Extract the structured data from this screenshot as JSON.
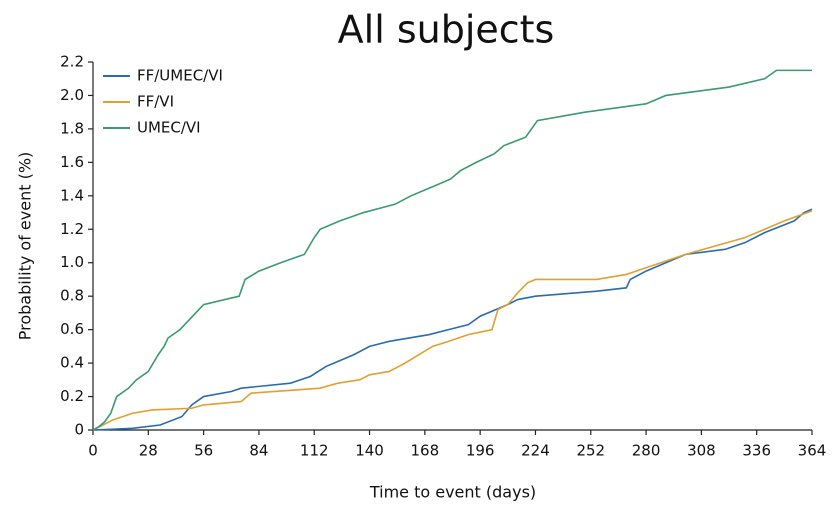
{
  "chart_data": {
    "type": "line",
    "title": "All subjects",
    "x_label": "Time to event (days)",
    "y_label": "Probability of event (%)",
    "xlim": [
      0,
      364
    ],
    "xticks": [
      0,
      28,
      56,
      84,
      112,
      140,
      168,
      196,
      224,
      252,
      280,
      308,
      336,
      364
    ],
    "ylim": [
      0,
      2.2
    ],
    "yticks": [
      0,
      0.2,
      0.4,
      0.6,
      0.8,
      {
        "value": 1,
        "label": "1.0"
      },
      1.2,
      1.4,
      1.6,
      1.8,
      {
        "value": 2,
        "label": "2.0"
      },
      2.2
    ],
    "legend": "top-left",
    "series": [
      {
        "name": "FF/UMEC/VI",
        "color": "#2a6cb0",
        "x": [
          0,
          20,
          34,
          45,
          50,
          56,
          70,
          75,
          100,
          110,
          118,
          126,
          132,
          140,
          150,
          170,
          180,
          190,
          196,
          210,
          215,
          224,
          255,
          270,
          272,
          280,
          290,
          300,
          320,
          330,
          340,
          355,
          360,
          364
        ],
        "values": [
          0,
          0.01,
          0.03,
          0.08,
          0.15,
          0.2,
          0.23,
          0.25,
          0.28,
          0.32,
          0.38,
          0.42,
          0.45,
          0.5,
          0.53,
          0.57,
          0.6,
          0.63,
          0.68,
          0.75,
          0.78,
          0.8,
          0.83,
          0.85,
          0.9,
          0.95,
          1.0,
          1.05,
          1.08,
          1.12,
          1.18,
          1.25,
          1.3,
          1.32
        ]
      },
      {
        "name": "FF/VI",
        "color": "#e0a030",
        "x": [
          0,
          5,
          10,
          20,
          30,
          50,
          56,
          75,
          80,
          115,
          124,
          135,
          140,
          150,
          158,
          165,
          172,
          180,
          190,
          202,
          205,
          210,
          215,
          220,
          224,
          255,
          270,
          280,
          300,
          315,
          330,
          350,
          364
        ],
        "values": [
          0,
          0.03,
          0.06,
          0.1,
          0.12,
          0.13,
          0.15,
          0.17,
          0.22,
          0.25,
          0.28,
          0.3,
          0.33,
          0.35,
          0.4,
          0.45,
          0.5,
          0.53,
          0.57,
          0.6,
          0.72,
          0.75,
          0.82,
          0.88,
          0.9,
          0.9,
          0.93,
          0.97,
          1.05,
          1.1,
          1.15,
          1.25,
          1.31
        ]
      },
      {
        "name": "UMEC/VI",
        "color": "#3a9a72",
        "x": [
          0,
          3,
          6,
          9,
          12,
          18,
          22,
          28,
          33,
          36,
          38,
          44,
          48,
          52,
          56,
          74,
          77,
          84,
          95,
          107,
          112,
          115,
          125,
          137,
          153,
          161,
          171,
          181,
          186,
          194,
          203,
          208,
          219,
          225,
          249,
          280,
          290,
          322,
          340,
          346,
          364
        ],
        "values": [
          0,
          0.02,
          0.05,
          0.1,
          0.2,
          0.25,
          0.3,
          0.35,
          0.45,
          0.5,
          0.55,
          0.6,
          0.65,
          0.7,
          0.75,
          0.8,
          0.9,
          0.95,
          1.0,
          1.05,
          1.15,
          1.2,
          1.25,
          1.3,
          1.35,
          1.4,
          1.45,
          1.5,
          1.55,
          1.6,
          1.65,
          1.7,
          1.75,
          1.85,
          1.9,
          1.95,
          2.0,
          2.05,
          2.1,
          2.15,
          2.15
        ]
      }
    ]
  }
}
